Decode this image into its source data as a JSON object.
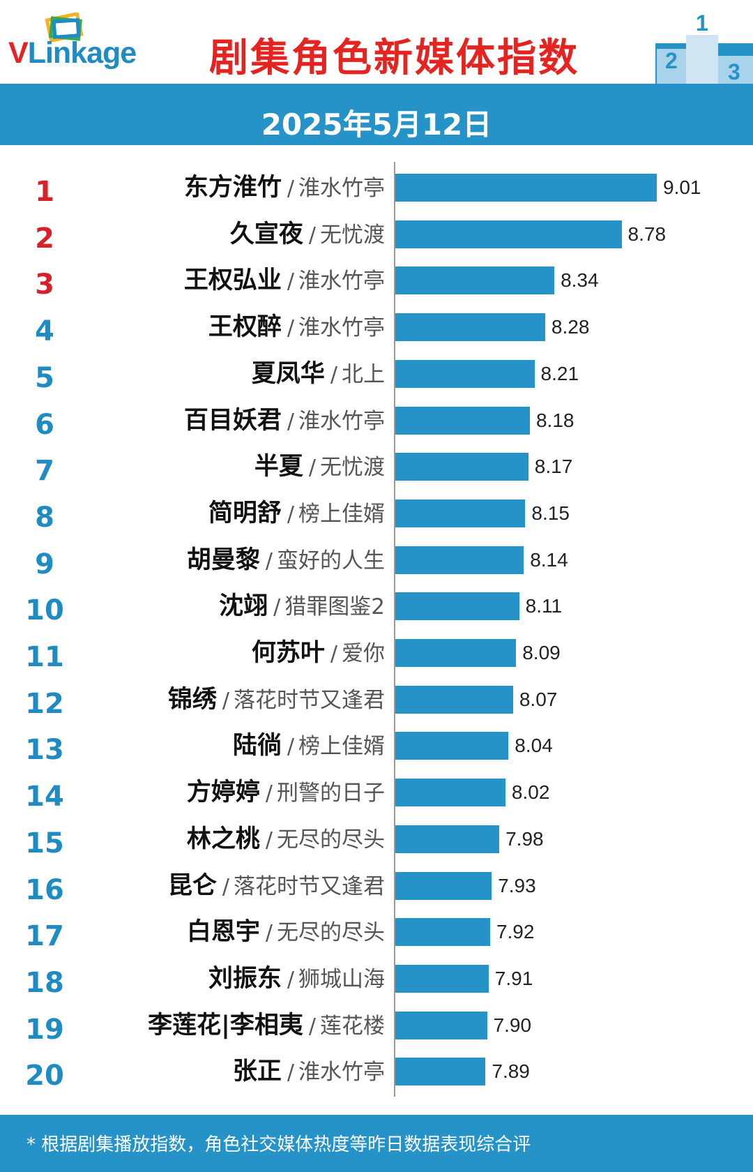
{
  "header": {
    "logo_text_v": "V",
    "logo_text_rest": "Linkage",
    "title": "剧集角色新媒体指数",
    "podium_numbers": [
      "2",
      "1",
      "3"
    ]
  },
  "date": "2025年5月12日",
  "footnote": "* 根据剧集播放指数，角色社交媒体热度等昨日数据表现综合评",
  "colors": {
    "accent": "#2693c8",
    "title_red": "#e52421",
    "rank_red": "#d6202a",
    "rank_blue": "#1e8bc3"
  },
  "chart_data": {
    "type": "bar",
    "orientation": "horizontal",
    "xlim": [
      7.3,
      9.15
    ],
    "grid": false,
    "rows": [
      {
        "rank": "1",
        "name": "东方淮竹",
        "drama": "淮水竹亭",
        "value": 9.01,
        "value_label": "9.01"
      },
      {
        "rank": "2",
        "name": "久宣夜",
        "drama": "无忧渡",
        "value": 8.78,
        "value_label": "8.78"
      },
      {
        "rank": "3",
        "name": "王权弘业",
        "drama": "淮水竹亭",
        "value": 8.34,
        "value_label": "8.34"
      },
      {
        "rank": "4",
        "name": "王权醉",
        "drama": "淮水竹亭",
        "value": 8.28,
        "value_label": "8.28"
      },
      {
        "rank": "5",
        "name": "夏凤华",
        "drama": "北上",
        "value": 8.21,
        "value_label": "8.21"
      },
      {
        "rank": "6",
        "name": "百目妖君",
        "drama": "淮水竹亭",
        "value": 8.18,
        "value_label": "8.18"
      },
      {
        "rank": "7",
        "name": "半夏",
        "drama": "无忧渡",
        "value": 8.17,
        "value_label": "8.17"
      },
      {
        "rank": "8",
        "name": "简明舒",
        "drama": "榜上佳婿",
        "value": 8.15,
        "value_label": "8.15"
      },
      {
        "rank": "9",
        "name": "胡曼黎",
        "drama": "蛮好的人生",
        "value": 8.14,
        "value_label": "8.14"
      },
      {
        "rank": "10",
        "name": "沈翊",
        "drama": "猎罪图鉴2",
        "value": 8.11,
        "value_label": "8.11"
      },
      {
        "rank": "11",
        "name": "何苏叶",
        "drama": "爱你",
        "value": 8.09,
        "value_label": "8.09"
      },
      {
        "rank": "12",
        "name": "锦绣",
        "drama": "落花时节又逢君",
        "value": 8.07,
        "value_label": "8.07"
      },
      {
        "rank": "13",
        "name": "陆徜",
        "drama": "榜上佳婿",
        "value": 8.04,
        "value_label": "8.04"
      },
      {
        "rank": "14",
        "name": "方婷婷",
        "drama": "刑警的日子",
        "value": 8.02,
        "value_label": "8.02"
      },
      {
        "rank": "15",
        "name": "林之桃",
        "drama": "无尽的尽头",
        "value": 7.98,
        "value_label": "7.98"
      },
      {
        "rank": "16",
        "name": "昆仑",
        "drama": "落花时节又逢君",
        "value": 7.93,
        "value_label": "7.93"
      },
      {
        "rank": "17",
        "name": "白恩宇",
        "drama": "无尽的尽头",
        "value": 7.92,
        "value_label": "7.92"
      },
      {
        "rank": "18",
        "name": "刘振东",
        "drama": "狮城山海",
        "value": 7.91,
        "value_label": "7.91"
      },
      {
        "rank": "19",
        "name": "李莲花|李相夷",
        "drama": "莲花楼",
        "value": 7.9,
        "value_label": "7.90"
      },
      {
        "rank": "20",
        "name": "张正",
        "drama": "淮水竹亭",
        "value": 7.89,
        "value_label": "7.89"
      }
    ]
  }
}
